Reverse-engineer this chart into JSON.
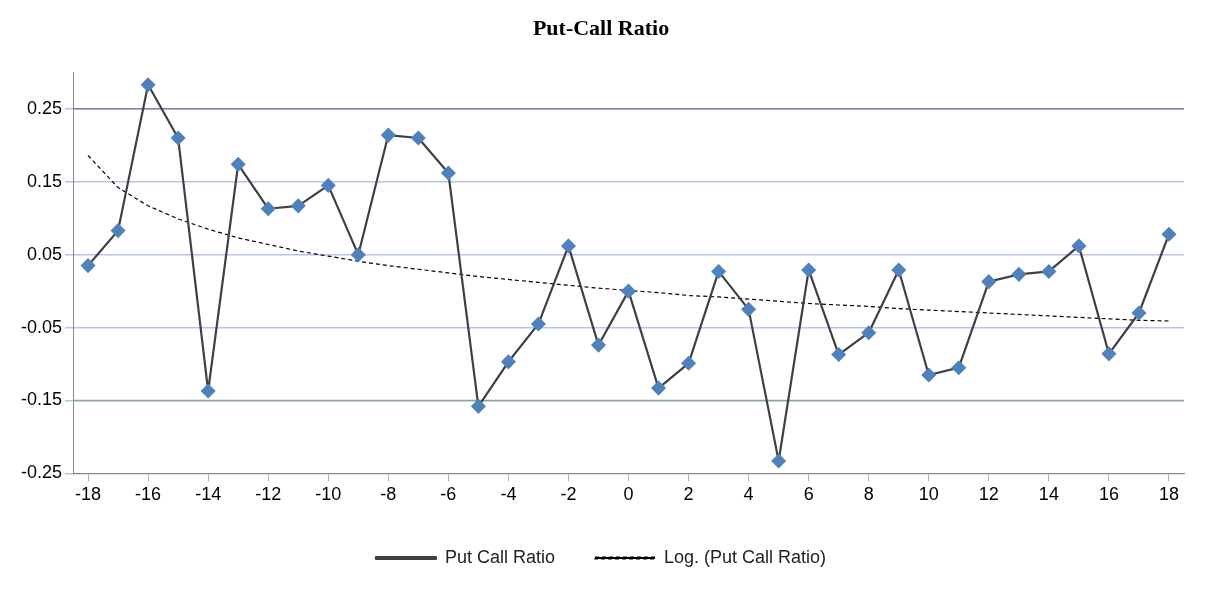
{
  "chart_data": {
    "type": "line",
    "title": "Put-Call Ratio",
    "x": [
      -18,
      -17,
      -16,
      -15,
      -14,
      -13,
      -12,
      -11,
      -10,
      -9,
      -8,
      -7,
      -6,
      -5,
      -4,
      -3,
      -2,
      -1,
      0,
      1,
      2,
      3,
      4,
      5,
      6,
      7,
      8,
      9,
      10,
      11,
      12,
      13,
      14,
      15,
      16,
      17,
      18
    ],
    "series": [
      {
        "name": "Put Call Ratio",
        "color": "#4f81bd",
        "marker": "diamond",
        "values": [
          0.035,
          0.083,
          0.283,
          0.21,
          -0.137,
          0.174,
          0.113,
          0.117,
          0.145,
          0.05,
          0.214,
          0.21,
          0.162,
          -0.158,
          -0.097,
          -0.045,
          0.062,
          -0.074,
          0.0,
          -0.133,
          -0.099,
          0.027,
          -0.025,
          -0.233,
          0.029,
          -0.087,
          -0.057,
          0.029,
          -0.115,
          -0.105,
          0.013,
          0.023,
          0.027,
          0.062,
          -0.086,
          -0.03,
          0.078
        ]
      },
      {
        "name": "Log. (Put Call Ratio)",
        "color": "#000000",
        "marker": "none",
        "line_style": "dashed",
        "values": [
          0.186,
          0.142,
          0.117,
          0.099,
          0.085,
          0.073,
          0.064,
          0.055,
          0.048,
          0.041,
          0.035,
          0.03,
          0.025,
          0.02,
          0.016,
          0.012,
          0.008,
          0.004,
          0.001,
          -0.002,
          -0.006,
          -0.008,
          -0.011,
          -0.014,
          -0.017,
          -0.019,
          -0.021,
          -0.024,
          -0.026,
          -0.028,
          -0.03,
          -0.032,
          -0.034,
          -0.036,
          -0.038,
          -0.04,
          -0.041
        ]
      }
    ],
    "xlim": [
      -18.5,
      18.5
    ],
    "xticks": [
      -18,
      -16,
      -14,
      -12,
      -10,
      -8,
      -6,
      -4,
      -2,
      0,
      2,
      4,
      6,
      8,
      10,
      12,
      14,
      16,
      18
    ],
    "ylim": [
      -0.25,
      0.3
    ],
    "yticks": [
      -0.25,
      -0.15,
      -0.05,
      0.05,
      0.15,
      0.25
    ],
    "grid": "y",
    "legend": "bottom",
    "ref_lines": [
      {
        "axis": "y",
        "value": 0.25,
        "color": "#7f7fc0"
      },
      {
        "axis": "y",
        "value": -0.15,
        "color": "#8aa88a"
      }
    ]
  }
}
